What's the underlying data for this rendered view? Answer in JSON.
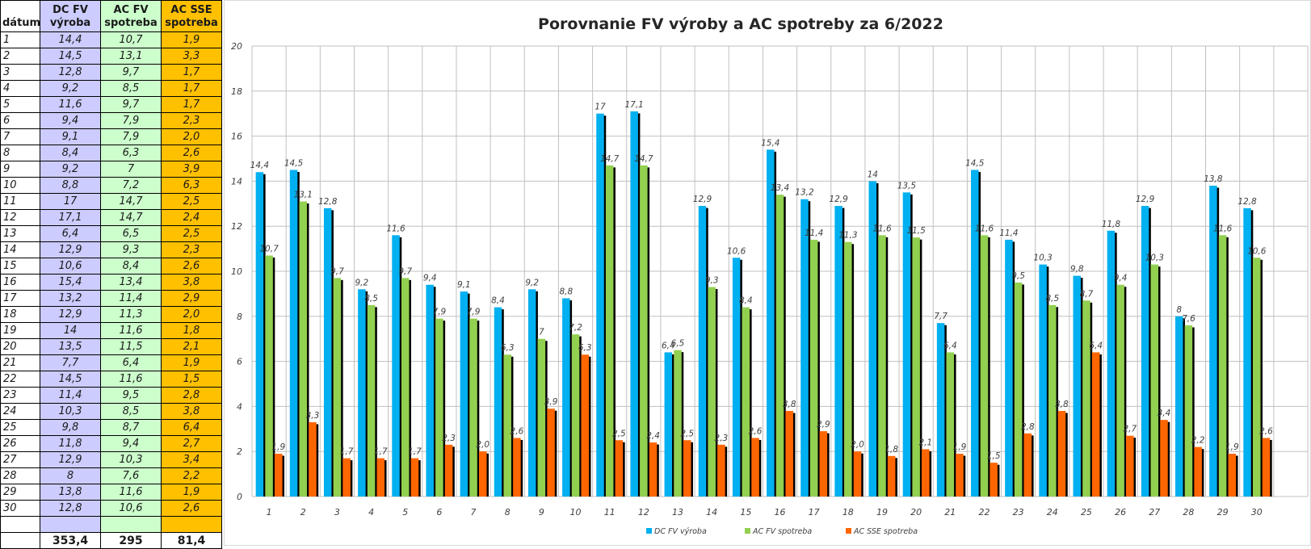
{
  "table": {
    "headers": [
      {
        "line1": "",
        "line2": "dátum"
      },
      {
        "line1": "DC FV",
        "line2": "výroba"
      },
      {
        "line1": "AC FV",
        "line2": "spotreba"
      },
      {
        "line1": "AC SSE",
        "line2": "spotreba"
      }
    ],
    "rows": [
      [
        "1",
        "14,4",
        "10,7",
        "1,9"
      ],
      [
        "2",
        "14,5",
        "13,1",
        "3,3"
      ],
      [
        "3",
        "12,8",
        "9,7",
        "1,7"
      ],
      [
        "4",
        "9,2",
        "8,5",
        "1,7"
      ],
      [
        "5",
        "11,6",
        "9,7",
        "1,7"
      ],
      [
        "6",
        "9,4",
        "7,9",
        "2,3"
      ],
      [
        "7",
        "9,1",
        "7,9",
        "2,0"
      ],
      [
        "8",
        "8,4",
        "6,3",
        "2,6"
      ],
      [
        "9",
        "9,2",
        "7",
        "3,9"
      ],
      [
        "10",
        "8,8",
        "7,2",
        "6,3"
      ],
      [
        "11",
        "17",
        "14,7",
        "2,5"
      ],
      [
        "12",
        "17,1",
        "14,7",
        "2,4"
      ],
      [
        "13",
        "6,4",
        "6,5",
        "2,5"
      ],
      [
        "14",
        "12,9",
        "9,3",
        "2,3"
      ],
      [
        "15",
        "10,6",
        "8,4",
        "2,6"
      ],
      [
        "16",
        "15,4",
        "13,4",
        "3,8"
      ],
      [
        "17",
        "13,2",
        "11,4",
        "2,9"
      ],
      [
        "18",
        "12,9",
        "11,3",
        "2,0"
      ],
      [
        "19",
        "14",
        "11,6",
        "1,8"
      ],
      [
        "20",
        "13,5",
        "11,5",
        "2,1"
      ],
      [
        "21",
        "7,7",
        "6,4",
        "1,9"
      ],
      [
        "22",
        "14,5",
        "11,6",
        "1,5"
      ],
      [
        "23",
        "11,4",
        "9,5",
        "2,8"
      ],
      [
        "24",
        "10,3",
        "8,5",
        "3,8"
      ],
      [
        "25",
        "9,8",
        "8,7",
        "6,4"
      ],
      [
        "26",
        "11,8",
        "9,4",
        "2,7"
      ],
      [
        "27",
        "12,9",
        "10,3",
        "3,4"
      ],
      [
        "28",
        "8",
        "7,6",
        "2,2"
      ],
      [
        "29",
        "13,8",
        "11,6",
        "1,9"
      ],
      [
        "30",
        "12,8",
        "10,6",
        "2,6"
      ]
    ],
    "totals": [
      "",
      "353,4",
      "295",
      "81,4"
    ]
  },
  "chart_data": {
    "type": "bar",
    "title": "Porovnanie FV výroby a AC spotreby za 6/2022",
    "xlabel": "",
    "ylabel": "",
    "ylim": [
      0,
      20
    ],
    "yticks": [
      "0",
      "2",
      "4",
      "6",
      "8",
      "10",
      "12",
      "14",
      "16",
      "18",
      "20"
    ],
    "grid": true,
    "legend_position": "bottom",
    "categories": [
      "1",
      "2",
      "3",
      "4",
      "5",
      "6",
      "7",
      "8",
      "9",
      "10",
      "11",
      "12",
      "13",
      "14",
      "15",
      "16",
      "17",
      "18",
      "19",
      "20",
      "21",
      "22",
      "23",
      "24",
      "25",
      "26",
      "27",
      "28",
      "29",
      "30"
    ],
    "series": [
      {
        "name": "DC FV výroba",
        "color": "#00B0F0",
        "values": [
          14.4,
          14.5,
          12.8,
          9.2,
          11.6,
          9.4,
          9.1,
          8.4,
          9.2,
          8.8,
          17,
          17.1,
          6.4,
          12.9,
          10.6,
          15.4,
          13.2,
          12.9,
          14,
          13.5,
          7.7,
          14.5,
          11.4,
          10.3,
          9.8,
          11.8,
          12.9,
          8,
          13.8,
          12.8
        ],
        "labels": [
          "14,4",
          "14,5",
          "12,8",
          "9,2",
          "11,6",
          "9,4",
          "9,1",
          "8,4",
          "9,2",
          "8,8",
          "17",
          "17,1",
          "6,4",
          "12,9",
          "10,6",
          "15,4",
          "13,2",
          "12,9",
          "14",
          "13,5",
          "7,7",
          "14,5",
          "11,4",
          "10,3",
          "9,8",
          "11,8",
          "12,9",
          "8",
          "13,8",
          "12,8"
        ]
      },
      {
        "name": "AC FV spotreba",
        "color": "#92D050",
        "values": [
          10.7,
          13.1,
          9.7,
          8.5,
          9.7,
          7.9,
          7.9,
          6.3,
          7,
          7.2,
          14.7,
          14.7,
          6.5,
          9.3,
          8.4,
          13.4,
          11.4,
          11.3,
          11.6,
          11.5,
          6.4,
          11.6,
          9.5,
          8.5,
          8.7,
          9.4,
          10.3,
          7.6,
          11.6,
          10.6
        ],
        "labels": [
          "10,7",
          "13,1",
          "9,7",
          "8,5",
          "9,7",
          "7,9",
          "7,9",
          "6,3",
          "7",
          "7,2",
          "14,7",
          "14,7",
          "6,5",
          "9,3",
          "8,4",
          "13,4",
          "11,4",
          "11,3",
          "11,6",
          "11,5",
          "6,4",
          "11,6",
          "9,5",
          "8,5",
          "8,7",
          "9,4",
          "10,3",
          "7,6",
          "11,6",
          "10,6"
        ]
      },
      {
        "name": "AC SSE spotreba",
        "color": "#FF6600",
        "values": [
          1.9,
          3.3,
          1.7,
          1.7,
          1.7,
          2.3,
          2.0,
          2.6,
          3.9,
          6.3,
          2.5,
          2.4,
          2.5,
          2.3,
          2.6,
          3.8,
          2.9,
          2.0,
          1.8,
          2.1,
          1.9,
          1.5,
          2.8,
          3.8,
          6.4,
          2.7,
          3.4,
          2.2,
          1.9,
          2.6
        ],
        "labels": [
          "1,9",
          "3,3",
          "1,7",
          "1,7",
          "1,7",
          "2,3",
          "2,0",
          "2,6",
          "3,9",
          "6,3",
          "2,5",
          "2,4",
          "2,5",
          "2,3",
          "2,6",
          "3,8",
          "2,9",
          "2,0",
          "1,8",
          "2,1",
          "1,9",
          "1,5",
          "2,8",
          "3,8",
          "6,4",
          "2,7",
          "3,4",
          "2,2",
          "1,9",
          "2,6"
        ]
      }
    ]
  }
}
